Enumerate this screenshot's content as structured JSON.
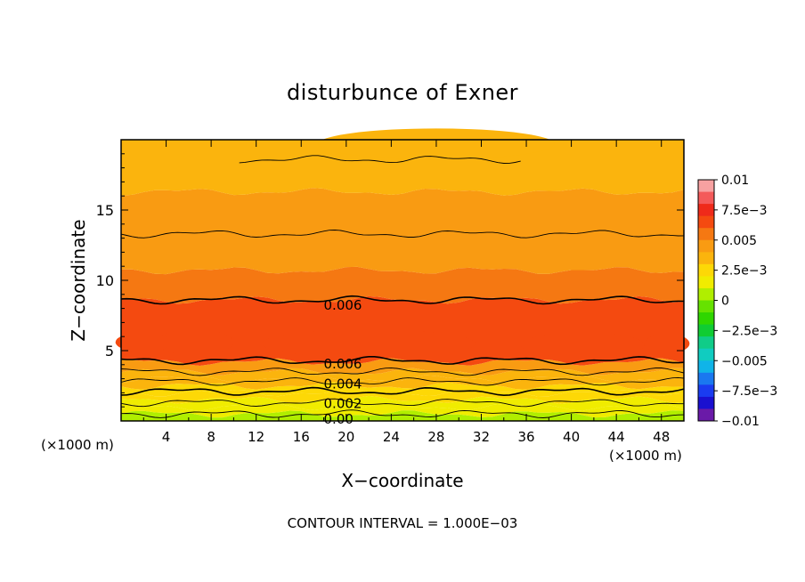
{
  "chart_data": {
    "type": "heatmap",
    "title": "disturbunce of Exner",
    "xlabel": "X−coordinate",
    "ylabel": "Z−coordinate",
    "x_unit_left": "(×1000 m)",
    "x_unit_right": "(×1000 m)",
    "xlim": [
      0,
      50
    ],
    "ylim": [
      0,
      20
    ],
    "x_ticks": [
      "4",
      "8",
      "12",
      "16",
      "20",
      "24",
      "28",
      "32",
      "36",
      "40",
      "44",
      "48"
    ],
    "y_ticks": [
      "5",
      "10",
      "15"
    ],
    "footer": "CONTOUR INTERVAL = 1.000E−03",
    "contour_interval": 0.001,
    "contour_labels": [
      "0.006",
      "0.006",
      "0.004",
      "0.002",
      "0.00"
    ],
    "colorbar": {
      "labels": [
        "0.01",
        "7.5e−3",
        "0.005",
        "2.5e−3",
        "0",
        "−2.5e−3",
        "−0.005",
        "−7.5e−3",
        "−0.01"
      ],
      "range": [
        -0.01,
        0.01
      ],
      "colors": [
        "#f7a1a1",
        "#f45a5a",
        "#ef2a1a",
        "#f44a10",
        "#f57812",
        "#f99b12",
        "#fbb40d",
        "#fdd806",
        "#f0ec00",
        "#b0ee00",
        "#66e200",
        "#2fd600",
        "#10cc33",
        "#10cc88",
        "#10ccc0",
        "#10b4e8",
        "#1a78f0",
        "#1a3cf0",
        "#1a10d0",
        "#6a1aa8"
      ]
    },
    "bands": [
      {
        "value": 0.001,
        "top_z": 0.5
      },
      {
        "value": 0.0015,
        "top_z": 1.0
      },
      {
        "value": 0.002,
        "top_z": 1.5
      },
      {
        "value": 0.0025,
        "top_z": 2.0
      },
      {
        "value": 0.003,
        "top_z": 2.5
      },
      {
        "value": 0.0035,
        "top_z": 3.0
      },
      {
        "value": 0.004,
        "top_z": 3.5
      },
      {
        "value": 0.0045,
        "top_z": 4.2
      },
      {
        "value": 0.0065,
        "top_z": 8.6
      },
      {
        "value": 0.0055,
        "top_z": 10.7
      },
      {
        "value": 0.005,
        "top_z": 13.3
      },
      {
        "value": 0.0045,
        "top_z": 16.3
      },
      {
        "value": 0.004,
        "top_z": 20.0
      }
    ],
    "contours_z": [
      0.5,
      1.3,
      2.1,
      2.8,
      3.5,
      4.3,
      8.6,
      13.3,
      18.6
    ],
    "contour_value_labels": [
      {
        "text": "0.006",
        "x": 18,
        "z": 8.3
      },
      {
        "text": "0.006",
        "x": 18,
        "z": 4.1
      },
      {
        "text": "0.004",
        "x": 18,
        "z": 2.7
      },
      {
        "text": "0.002",
        "x": 18,
        "z": 1.3
      },
      {
        "text": "0.00",
        "x": 18,
        "z": 0.2
      }
    ],
    "patches": [
      {
        "value": 0.007,
        "x": 6.5,
        "z": 5.6,
        "rx": 3.5,
        "rz": 0.9
      },
      {
        "value": 0.007,
        "x": 22,
        "z": 5.5,
        "rx": 9.5,
        "rz": 1.0
      },
      {
        "value": 0.007,
        "x": 41,
        "z": 5.4,
        "rx": 5.5,
        "rz": 0.9
      },
      {
        "value": 0.007,
        "x": 2,
        "z": 5.6,
        "rx": 2.5,
        "rz": 0.7
      },
      {
        "value": 0.007,
        "x": 48.5,
        "z": 5.5,
        "rx": 2.0,
        "rz": 0.7
      },
      {
        "value": 0.0035,
        "x": 28,
        "z": 19.7,
        "rx": 10.5,
        "rz": 1.1
      }
    ]
  }
}
